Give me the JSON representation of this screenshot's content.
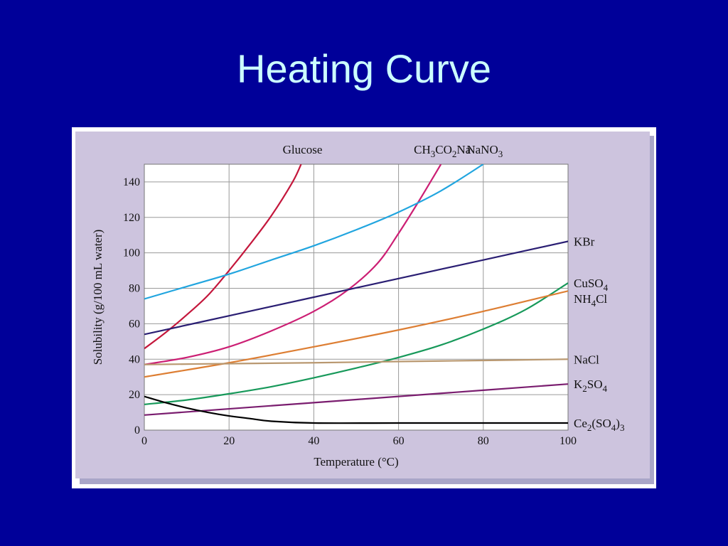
{
  "slide": {
    "title": "Heating Curve"
  },
  "colors": {
    "slide_background": "#000099",
    "title_text": "#ccffff",
    "figure_panel": "#cdc4de",
    "panel_shadow": "#a9a6c8",
    "plot_background": "#ffffff",
    "grid": "#9a9a9a"
  },
  "chart_data": {
    "type": "line",
    "xlabel": "Temperature (°C)",
    "ylabel": "Solubility (g/100 mL water)",
    "xlim": [
      0,
      100
    ],
    "ylim": [
      0,
      150
    ],
    "x_ticks": [
      "0",
      "20",
      "40",
      "60",
      "80",
      "100"
    ],
    "y_ticks": [
      "0",
      "20",
      "40",
      "60",
      "80",
      "100",
      "120",
      "140"
    ],
    "grid": true,
    "series": [
      {
        "name": "Glucose",
        "color": "#c4173c",
        "x": [
          0,
          5,
          10,
          15,
          20,
          25,
          30,
          35,
          37
        ],
        "y": [
          46,
          55,
          65,
          76,
          90,
          105,
          121,
          140,
          150
        ]
      },
      {
        "name": "CH₃CO₂Na",
        "color": "#cc1f74",
        "x": [
          0,
          10,
          20,
          30,
          40,
          48,
          55,
          60,
          65,
          70
        ],
        "y": [
          37,
          41,
          47,
          56,
          67,
          79,
          94,
          111,
          130,
          150
        ]
      },
      {
        "name": "NaNO₃",
        "color": "#21a5df",
        "x": [
          0,
          10,
          20,
          30,
          40,
          50,
          60,
          70,
          80
        ],
        "y": [
          74,
          81,
          88,
          96,
          104,
          113,
          123,
          135,
          150
        ]
      },
      {
        "name": "KBr",
        "color": "#2a1e73",
        "x": [
          0,
          20,
          40,
          60,
          80,
          100
        ],
        "y": [
          54,
          64.5,
          75,
          85.5,
          96,
          106.5
        ]
      },
      {
        "name": "CuSO₄",
        "color": "#17995a",
        "x": [
          0,
          10,
          20,
          30,
          40,
          50,
          60,
          70,
          80,
          90,
          100
        ],
        "y": [
          14.5,
          17,
          20.5,
          24.5,
          29.5,
          35,
          41,
          48,
          57,
          68,
          83
        ]
      },
      {
        "name": "NH₄Cl",
        "color": "#dd7e33",
        "x": [
          0,
          20,
          40,
          60,
          80,
          100
        ],
        "y": [
          30,
          38,
          47,
          56.5,
          67,
          78.5
        ]
      },
      {
        "name": "NaCl",
        "color": "#b99870",
        "x": [
          0,
          20,
          40,
          60,
          80,
          100
        ],
        "y": [
          37,
          37.5,
          38,
          38.7,
          39.3,
          40
        ]
      },
      {
        "name": "K₂SO₄",
        "color": "#7a1d6f",
        "x": [
          0,
          20,
          40,
          60,
          80,
          100
        ],
        "y": [
          8.5,
          12,
          15.5,
          19,
          22.5,
          26
        ]
      },
      {
        "name": "Ce₂(SO₄)₃",
        "color": "#000000",
        "x": [
          0,
          5,
          10,
          15,
          20,
          25,
          30,
          40,
          60,
          80,
          100
        ],
        "y": [
          19,
          15.5,
          12.5,
          10,
          8,
          6.5,
          5,
          4,
          4,
          4,
          4
        ]
      }
    ],
    "labels": {
      "top": [
        {
          "series": "Glucose",
          "base": "Glucose",
          "parts": []
        },
        {
          "series": "CH₃CO₂Na",
          "base": "CH",
          "parts": [
            [
              "3",
              "sub"
            ],
            [
              "CO",
              ""
            ],
            [
              "2",
              "sub"
            ],
            [
              "Na",
              ""
            ]
          ]
        },
        {
          "series": "NaNO₃",
          "base": "NaNO",
          "parts": [
            [
              "3",
              "sub"
            ]
          ]
        }
      ],
      "right": [
        {
          "series": "KBr",
          "base": "KBr",
          "parts": []
        },
        {
          "series": "CuSO₄",
          "base": "CuSO",
          "parts": [
            [
              "4",
              "sub"
            ]
          ]
        },
        {
          "series": "NH₄Cl",
          "base": "NH",
          "parts": [
            [
              "4",
              "sub"
            ],
            [
              "Cl",
              ""
            ]
          ]
        },
        {
          "series": "NaCl",
          "base": "NaCl",
          "parts": []
        },
        {
          "series": "K₂SO₄",
          "base": "K",
          "parts": [
            [
              "2",
              "sub"
            ],
            [
              "SO",
              ""
            ],
            [
              "4",
              "sub"
            ]
          ]
        },
        {
          "series": "Ce₂(SO₄)₃",
          "base": "Ce",
          "parts": [
            [
              "2",
              "sub"
            ],
            [
              "(SO",
              ""
            ],
            [
              "4",
              "sub"
            ],
            [
              ")",
              ""
            ],
            [
              "3",
              "sub"
            ]
          ]
        }
      ]
    }
  }
}
